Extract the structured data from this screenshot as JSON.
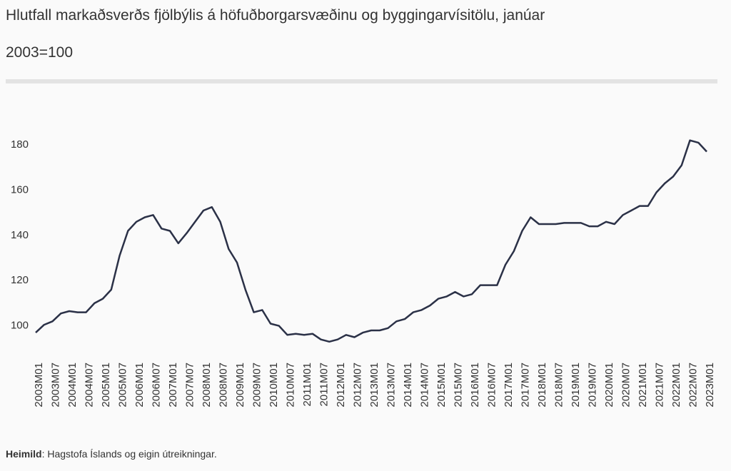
{
  "chart_data": {
    "type": "line",
    "title": "Hlutfall markaðsverðs fjölbýlis á höfuðborgarsvæðinu og byggingarvísitölu,  janúar",
    "subtitle": "2003=100",
    "categories": [
      "2003M01",
      null,
      "2003M07",
      null,
      "2004M01",
      null,
      "2004M07",
      null,
      "2005M01",
      null,
      "2005M07",
      null,
      "2006M01",
      null,
      "2006M07",
      null,
      "2007M01",
      null,
      "2007M07",
      null,
      "2008M01",
      null,
      "2008M07",
      null,
      "2009M01",
      null,
      "2009M07",
      null,
      "2010M01",
      null,
      "2010M07",
      null,
      "2011M01",
      null,
      "2011M07",
      null,
      "2012M01",
      null,
      "2012M07",
      null,
      "2013M01",
      null,
      "2013M07",
      null,
      "2014M01",
      null,
      "2014M07",
      null,
      "2015M01",
      null,
      "2015M07",
      null,
      "2016M01",
      null,
      "2016M07",
      null,
      "2017M01",
      null,
      "2017M07",
      null,
      "2018M01",
      null,
      "2018M07",
      null,
      "2019M01",
      null,
      "2019M07",
      null,
      "2020M01",
      null,
      "2020M07",
      null,
      "2021M01",
      null,
      "2021M07",
      null,
      "2022M01",
      null,
      "2022M07",
      null,
      "2023M01"
    ],
    "values": [
      97,
      100.5,
      102,
      105.5,
      106.5,
      106,
      106,
      110,
      112,
      116,
      131,
      142,
      146,
      148,
      149,
      143,
      142,
      136.5,
      141,
      146,
      151,
      152.5,
      146,
      134,
      128,
      116,
      106,
      107,
      101,
      100,
      96,
      96.5,
      96,
      96.5,
      94,
      93,
      94,
      96,
      95,
      97,
      98,
      98,
      99,
      102,
      103,
      106,
      107,
      109,
      112,
      113,
      115,
      113,
      114,
      118,
      118,
      118,
      127,
      133,
      142,
      148,
      145,
      145,
      145,
      145.5,
      145.5,
      145.5,
      144,
      144,
      146,
      145,
      149,
      151,
      153,
      153,
      159,
      163,
      166,
      171,
      182,
      181,
      177
    ],
    "color": "#2b3147",
    "ylim": [
      92,
      186
    ],
    "yticks": [
      100,
      120,
      140,
      160,
      180
    ],
    "grid": false,
    "footer": {
      "label": "Heimild",
      "text": ": Hagstofa Íslands og eigin útreikningar."
    }
  }
}
